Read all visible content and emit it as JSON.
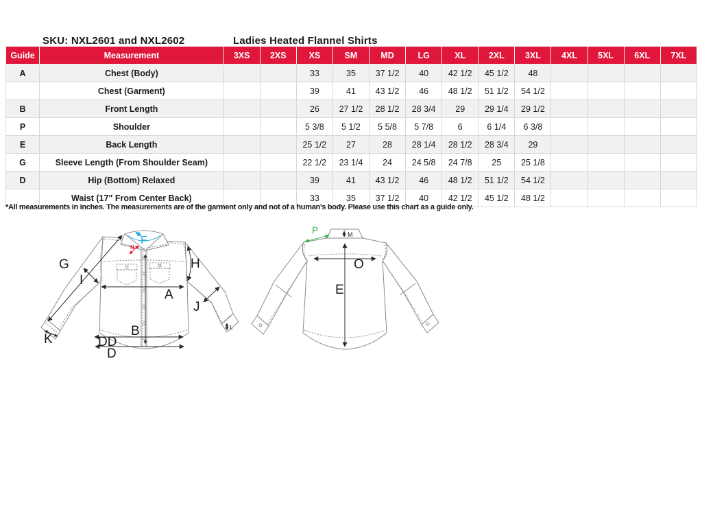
{
  "page": {
    "sku_title": "SKU: NXL2601 and NXL2602",
    "product_title": "Ladies Heated Flannel Shirts",
    "footnote": "*All measurements in inches. The measurements are of the garment only and not of a human's body. Please use this chart as a guide only."
  },
  "colors": {
    "header_bg": "#E0173B",
    "header_text": "#FFFFFF",
    "row_stripe": "#F1F1F1",
    "table_border": "#D8D8D8",
    "diagram_line": "#8A8A8A",
    "label_f_cyan": "#29ABE2",
    "label_n_red": "#E8112D",
    "label_p_green": "#3BB54A"
  },
  "table": {
    "headers": [
      "Guide",
      "Measurement",
      "3XS",
      "2XS",
      "XS",
      "SM",
      "MD",
      "LG",
      "XL",
      "2XL",
      "3XL",
      "4XL",
      "5XL",
      "6XL",
      "7XL"
    ],
    "rows": [
      {
        "guide": "A",
        "measurement": "Chest (Body)",
        "values": [
          "",
          "",
          "33",
          "35",
          "37 1/2",
          "40",
          "42 1/2",
          "45 1/2",
          "48",
          "",
          "",
          "",
          ""
        ]
      },
      {
        "guide": "",
        "measurement": "Chest (Garment)",
        "values": [
          "",
          "",
          "39",
          "41",
          "43 1/2",
          "46",
          "48 1/2",
          "51 1/2",
          "54 1/2",
          "",
          "",
          "",
          ""
        ]
      },
      {
        "guide": "B",
        "measurement": "Front Length",
        "values": [
          "",
          "",
          "26",
          "27 1/2",
          "28 1/2",
          "28 3/4",
          "29",
          "29 1/4",
          "29 1/2",
          "",
          "",
          "",
          ""
        ]
      },
      {
        "guide": "P",
        "measurement": "Shoulder",
        "values": [
          "",
          "",
          "5 3/8",
          "5 1/2",
          "5 5/8",
          "5 7/8",
          "6",
          "6 1/4",
          "6 3/8",
          "",
          "",
          "",
          ""
        ]
      },
      {
        "guide": "E",
        "measurement": "Back Length",
        "values": [
          "",
          "",
          "25 1/2",
          "27",
          "28",
          "28 1/4",
          "28 1/2",
          "28 3/4",
          "29",
          "",
          "",
          "",
          ""
        ]
      },
      {
        "guide": "G",
        "measurement": "Sleeve Length (From Shoulder Seam)",
        "values": [
          "",
          "",
          "22 1/2",
          "23 1/4",
          "24",
          "24 5/8",
          "24 7/8",
          "25",
          "25 1/8",
          "",
          "",
          "",
          ""
        ]
      },
      {
        "guide": "D",
        "measurement": "Hip (Bottom) Relaxed",
        "values": [
          "",
          "",
          "39",
          "41",
          "43 1/2",
          "46",
          "48 1/2",
          "51 1/2",
          "54 1/2",
          "",
          "",
          "",
          ""
        ]
      },
      {
        "guide": "",
        "measurement": "Waist (17\" From Center Back)",
        "values": [
          "",
          "",
          "33",
          "35",
          "37 1/2",
          "40",
          "42 1/2",
          "45 1/2",
          "48 1/2",
          "",
          "",
          "",
          ""
        ]
      }
    ]
  },
  "diagram": {
    "front": {
      "F": "F",
      "N": "N",
      "G": "G",
      "I": "I",
      "H": "H",
      "A": "A",
      "J": "J",
      "B": "B",
      "K": "K",
      "DD": "DD",
      "D": "D",
      "L": "L"
    },
    "back": {
      "P": "P",
      "M": "M",
      "O": "O",
      "E": "E"
    }
  }
}
